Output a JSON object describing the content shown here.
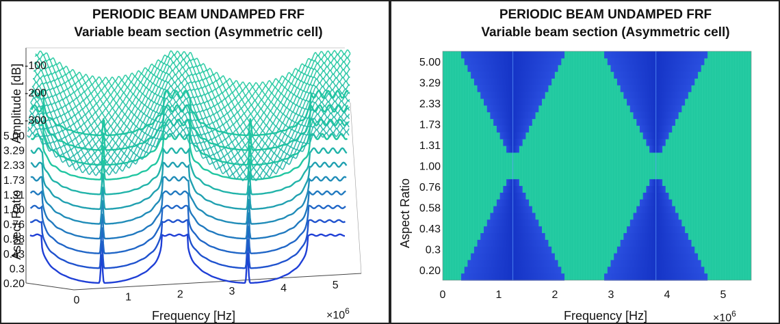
{
  "chart_data": [
    {
      "type": "line",
      "view": "3d-waterfall",
      "title": "PERIODIC BEAM UNDAMPED FRF",
      "subtitle": "Variable beam section (Asymmetric cell)",
      "xlabel": "Frequency [Hz]",
      "x_multiplier": "×10^6",
      "ylabel": "Aspect Ratio",
      "zlabel": "Amplitude [dB]",
      "xlim": [
        0,
        5.5
      ],
      "x_ticks": [
        "0",
        "1",
        "2",
        "3",
        "4",
        "5"
      ],
      "aspect_ratio_ticks": [
        "0.20",
        "0.3",
        "0.43",
        "0.58",
        "0.76",
        "1.00",
        "1.31",
        "1.73",
        "2.33",
        "3.29",
        "5.00"
      ],
      "amplitude_ticks": [
        "-100",
        "-200",
        "-300"
      ],
      "aspect_ratios": [
        0.2,
        0.3,
        0.43,
        0.58,
        0.76,
        1.0,
        1.31,
        1.73,
        2.33,
        3.29,
        5.0
      ],
      "resonance_frequencies": [
        1.25,
        3.8
      ],
      "colormap": [
        "#1f3fd6",
        "#21c9a0"
      ]
    },
    {
      "type": "heatmap",
      "title": "PERIODIC BEAM UNDAMPED FRF",
      "subtitle": "Variable beam section (Asymmetric cell)",
      "xlabel": "Frequency [Hz]",
      "x_multiplier": "×10^6",
      "ylabel": "Aspect Ratio",
      "xlim": [
        0,
        5.5
      ],
      "x_ticks": [
        "0",
        "1",
        "2",
        "3",
        "4",
        "5"
      ],
      "y_ticks": [
        "0.20",
        "0.3",
        "0.43",
        "0.58",
        "0.76",
        "1.00",
        "1.31",
        "1.73",
        "2.33",
        "3.29",
        "5.00"
      ],
      "band_gaps": [
        {
          "center": 1.25,
          "half_width_extreme": 0.95,
          "half_width_mid": 0.05
        },
        {
          "center": 3.8,
          "half_width_extreme": 0.95,
          "half_width_mid": 0.05
        }
      ],
      "colormap": [
        "#1f3fd6",
        "#21c9a0"
      ]
    }
  ]
}
